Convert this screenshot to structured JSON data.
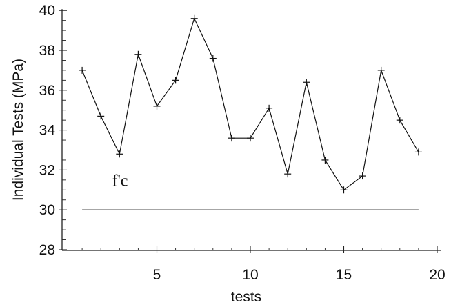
{
  "chart_data": {
    "type": "line",
    "xlabel": "tests",
    "ylabel": "Individual Tests (MPa)",
    "xlim": [
      0,
      20
    ],
    "ylim": [
      28,
      40
    ],
    "x_ticks": [
      5,
      10,
      15,
      20
    ],
    "y_ticks": [
      28,
      30,
      32,
      34,
      36,
      38,
      40
    ],
    "grid": false,
    "series": [
      {
        "marker": "plus",
        "x": [
          1,
          2,
          3,
          4,
          5,
          6,
          7,
          8,
          9,
          10,
          11,
          12,
          13,
          14,
          15,
          16,
          17,
          18,
          19
        ],
        "y": [
          37.0,
          34.7,
          32.8,
          37.8,
          35.2,
          36.5,
          39.6,
          37.6,
          33.6,
          33.6,
          35.1,
          31.8,
          36.4,
          32.5,
          31.0,
          31.7,
          37.0,
          34.5,
          32.9
        ]
      }
    ],
    "reference_line": {
      "y": 30,
      "x_start": 1,
      "x_end": 19
    },
    "annotations": [
      {
        "text": "f'c",
        "x": 2.6,
        "y": 31.2
      }
    ]
  }
}
